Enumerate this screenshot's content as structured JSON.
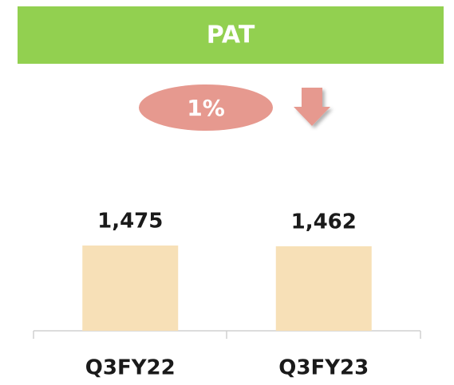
{
  "chart_data": {
    "type": "bar",
    "title": "PAT",
    "annotation": "1%",
    "categories": [
      "Q3FY22",
      "Q3FY23"
    ],
    "values": [
      1475,
      1462
    ],
    "value_labels": [
      "1,475",
      "1,462"
    ],
    "color": "#f7e0b7"
  }
}
